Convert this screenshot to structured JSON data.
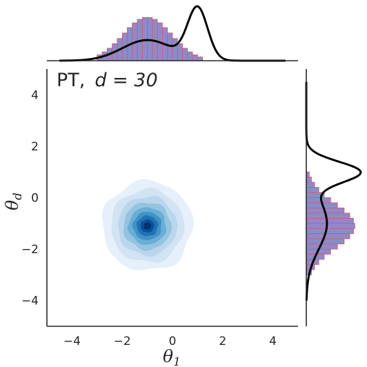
{
  "chart_data": {
    "type": "jointplot",
    "annotation_prefix": "PT,",
    "annotation_math": "d = 30",
    "xlabel_symbol": "θ",
    "xlabel_sub": "1",
    "ylabel_symbol": "θ",
    "ylabel_sub": "d",
    "xlim": [
      -5,
      5
    ],
    "ylim": [
      -5,
      5
    ],
    "xticks": [
      -4,
      -2,
      0,
      2,
      4
    ],
    "yticks": [
      -4,
      -2,
      0,
      2,
      4
    ],
    "grid": false,
    "joint_kde": {
      "center": [
        -1.0,
        -1.1
      ],
      "levels": [
        {
          "rx": 3.6,
          "ry": 3.5,
          "color": "#e6f0fa"
        },
        {
          "rx": 2.9,
          "ry": 2.85,
          "color": "#d2e3f3"
        },
        {
          "rx": 2.35,
          "ry": 2.3,
          "color": "#b9d6ec"
        },
        {
          "rx": 1.9,
          "ry": 1.85,
          "color": "#94c4df"
        },
        {
          "rx": 1.5,
          "ry": 1.45,
          "color": "#6aaed6"
        },
        {
          "rx": 1.15,
          "ry": 1.1,
          "color": "#4292c6"
        },
        {
          "rx": 0.85,
          "ry": 0.8,
          "color": "#2171b5"
        },
        {
          "rx": 0.55,
          "ry": 0.5,
          "color": "#08519c"
        },
        {
          "rx": 0.3,
          "ry": 0.28,
          "color": "#08306b"
        }
      ]
    },
    "x_marginal_histogram": {
      "mean": -1.0,
      "sd": 0.95,
      "bin_width": 0.2,
      "range": [
        -3.0,
        1.2
      ],
      "fill": "#8a8cc9",
      "edge": "#e0506a"
    },
    "y_marginal_histogram": {
      "mean": -1.1,
      "sd": 0.85,
      "bin_width": 0.2,
      "range": [
        -3.0,
        1.0
      ],
      "fill": "#8a8cc9",
      "edge": "#e0506a"
    },
    "x_reference_density": {
      "components": [
        {
          "weight": 0.5,
          "mean": -1.0,
          "sd": 1.0
        },
        {
          "weight": 0.5,
          "mean": 1.0,
          "sd": 0.4
        }
      ],
      "color": "#000000"
    },
    "y_reference_density": {
      "components": [
        {
          "weight": 0.5,
          "mean": -1.0,
          "sd": 1.0
        },
        {
          "weight": 0.5,
          "mean": 1.0,
          "sd": 0.4
        }
      ],
      "color": "#000000"
    }
  }
}
